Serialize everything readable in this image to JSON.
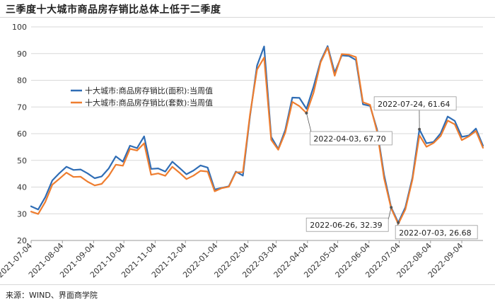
{
  "header": {
    "title": "三季度十大城市商品房存销比总体上低于二季度"
  },
  "footer": {
    "source": "来源：WIND、界面商学院"
  },
  "colors": {
    "area": "#2f6db5",
    "units": "#ee7d2f",
    "grid": "#d9d9d9",
    "axis": "#999999"
  },
  "chart_data": {
    "type": "line",
    "title": "三季度十大城市商品房存销比总体上低于二季度",
    "xlabel": "",
    "ylabel": "",
    "ylim": [
      20,
      100
    ],
    "yticks": [
      "20",
      "30",
      "40",
      "50",
      "60",
      "70",
      "80",
      "90",
      "100"
    ],
    "x_tick_labels": [
      "2021-07-04",
      "2021-08-04",
      "2021-09-04",
      "2021-10-04",
      "2021-11-04",
      "2021-12-04",
      "2022-01-04",
      "2022-02-04",
      "2022-03-04",
      "2022-04-04",
      "2022-05-04",
      "2022-06-04",
      "2022-07-04",
      "2022-08-04",
      "2022-09-04"
    ],
    "grid": "horizontal",
    "legend_position": "upper-left",
    "x": [
      "2021-07-04",
      "2021-07-11",
      "2021-07-18",
      "2021-07-25",
      "2021-08-01",
      "2021-08-08",
      "2021-08-15",
      "2021-08-22",
      "2021-08-29",
      "2021-09-05",
      "2021-09-12",
      "2021-09-19",
      "2021-09-26",
      "2021-10-03",
      "2021-10-10",
      "2021-10-17",
      "2021-10-24",
      "2021-10-31",
      "2021-11-07",
      "2021-11-14",
      "2021-11-21",
      "2021-11-28",
      "2021-12-05",
      "2021-12-12",
      "2021-12-19",
      "2021-12-26",
      "2022-01-02",
      "2022-01-09",
      "2022-01-16",
      "2022-01-23",
      "2022-01-30",
      "2022-02-06",
      "2022-02-13",
      "2022-02-20",
      "2022-02-27",
      "2022-03-06",
      "2022-03-13",
      "2022-03-20",
      "2022-03-27",
      "2022-04-03",
      "2022-04-10",
      "2022-04-17",
      "2022-04-24",
      "2022-05-01",
      "2022-05-08",
      "2022-05-15",
      "2022-05-22",
      "2022-05-29",
      "2022-06-05",
      "2022-06-12",
      "2022-06-19",
      "2022-06-26",
      "2022-07-03",
      "2022-07-10",
      "2022-07-17",
      "2022-07-24",
      "2022-07-31",
      "2022-08-07",
      "2022-08-14",
      "2022-08-21",
      "2022-08-28",
      "2022-09-04",
      "2022-09-11",
      "2022-09-18",
      "2022-09-25"
    ],
    "series": [
      {
        "name": "十大城市:商品房存销比(面积):当周值",
        "color": "#2f6db5",
        "values": [
          32.8,
          31.6,
          36.2,
          42.5,
          45.2,
          47.6,
          46.4,
          46.6,
          45.1,
          43.3,
          44.0,
          47.0,
          51.5,
          49.5,
          55.5,
          54.6,
          59.0,
          46.8,
          47.0,
          45.8,
          49.5,
          47.2,
          44.8,
          46.2,
          48.1,
          47.3,
          39.1,
          39.7,
          40.3,
          45.8,
          44.3,
          66.5,
          85.5,
          92.7,
          58.8,
          54.3,
          61.4,
          73.5,
          73.4,
          69.3,
          77.6,
          87.2,
          92.8,
          82.9,
          89.3,
          89.1,
          87.6,
          71.0,
          70.4,
          61.6,
          44.5,
          32.4,
          26.7,
          32.4,
          43.5,
          61.6,
          56.4,
          56.9,
          60.1,
          66.4,
          64.8,
          58.8,
          59.3,
          61.9,
          55.5
        ]
      },
      {
        "name": "十大城市:商品房存销比(套数):当周值",
        "color": "#ee7d2f",
        "values": [
          30.8,
          29.9,
          34.4,
          40.9,
          43.1,
          45.4,
          43.8,
          43.9,
          42.0,
          40.6,
          41.2,
          44.2,
          48.4,
          48.0,
          54.3,
          53.7,
          56.4,
          44.6,
          45.1,
          44.2,
          47.6,
          45.4,
          43.0,
          44.3,
          46.1,
          45.8,
          38.4,
          39.6,
          40.1,
          45.5,
          45.6,
          67.1,
          84.0,
          88.5,
          57.7,
          54.0,
          60.4,
          71.9,
          70.3,
          67.7,
          75.3,
          86.7,
          92.3,
          81.7,
          89.8,
          89.6,
          88.7,
          71.8,
          70.8,
          60.8,
          43.2,
          32.0,
          26.2,
          31.6,
          42.7,
          59.4,
          55.1,
          56.5,
          59.1,
          64.9,
          63.5,
          57.6,
          59.0,
          61.0,
          54.7
        ]
      }
    ],
    "annotations": [
      {
        "text": "2022-04-03, 67.70",
        "x": "2022-04-03",
        "y": 67.7,
        "box": "below-right"
      },
      {
        "text": "2022-07-24, 61.64",
        "x": "2022-07-24",
        "y": 61.64,
        "box": "above-left"
      },
      {
        "text": "2022-06-26, 32.39",
        "x": "2022-06-26",
        "y": 32.39,
        "box": "below-left"
      },
      {
        "text": "2022-07-03, 26.68",
        "x": "2022-07-03",
        "y": 26.68,
        "box": "below-right"
      }
    ]
  }
}
